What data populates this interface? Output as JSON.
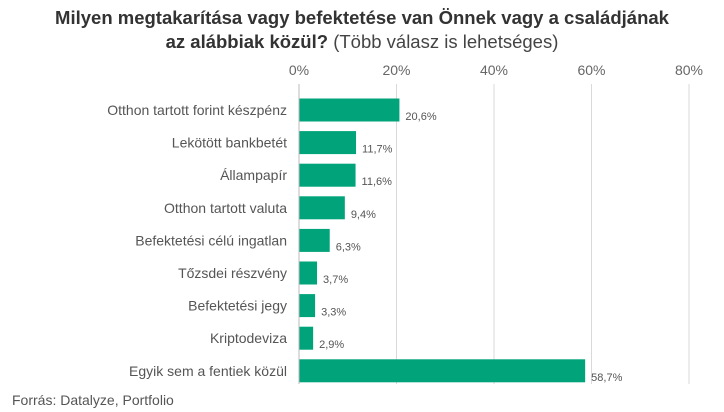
{
  "title": {
    "line1": "Milyen megtakarítása vagy befektetése van Önnek vagy a családjának",
    "line2_bold": "az alábbiak közül?",
    "line2_light": "(Több válasz is lehetséges)"
  },
  "source": "Forrás: Datalyze, Portfolio",
  "colors": {
    "bar": "#00A37A",
    "grid": "#d9d9d9",
    "text": "#555555"
  },
  "chart_data": {
    "type": "bar",
    "orientation": "horizontal",
    "categories": [
      "Otthon tartott forint készpénz",
      "Lekötött bankbetét",
      "Állampapír",
      "Otthon tartott valuta",
      "Befektetési célú ingatlan",
      "Tőzsdei részvény",
      "Befektetési jegy",
      "Kriptodeviza",
      "Egyik sem a fentiek közül"
    ],
    "values": [
      20.6,
      11.7,
      11.6,
      9.4,
      6.3,
      3.7,
      3.3,
      2.9,
      58.7
    ],
    "value_labels": [
      "20,6%",
      "11,7%",
      "11,6%",
      "9,4%",
      "6,3%",
      "3,7%",
      "3,3%",
      "2,9%",
      "58,7%"
    ],
    "xlim": [
      0,
      80
    ],
    "xticks": [
      0,
      20,
      40,
      60,
      80
    ],
    "xtick_labels": [
      "0%",
      "20%",
      "40%",
      "60%",
      "80%"
    ],
    "axis_position": "top",
    "grid": true
  }
}
